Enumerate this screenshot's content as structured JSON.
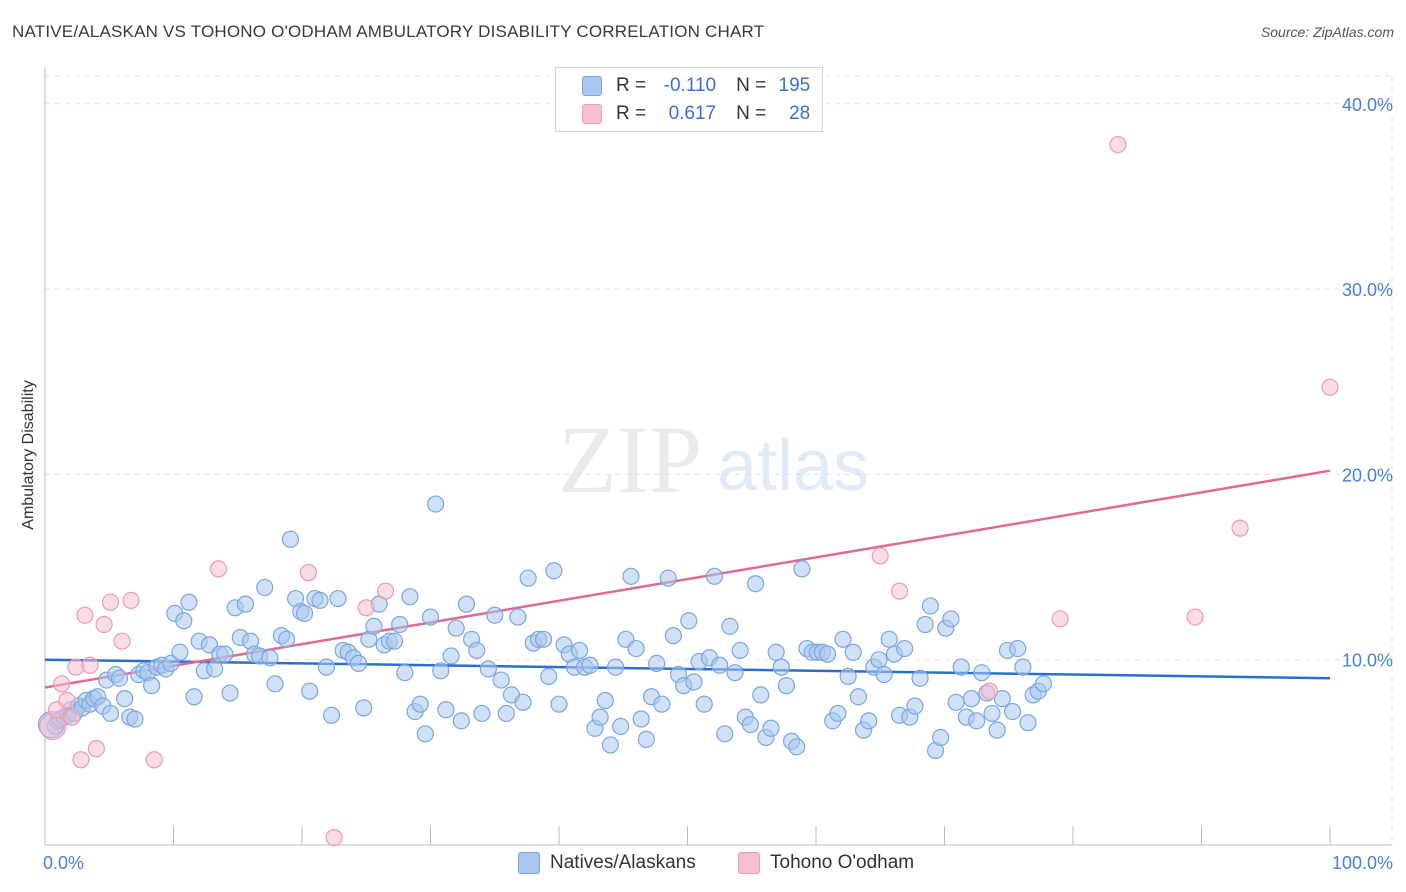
{
  "header": {
    "title": "NATIVE/ALASKAN VS TOHONO O'ODHAM AMBULATORY DISABILITY CORRELATION CHART",
    "source": "Source: ZipAtlas.com"
  },
  "watermark": {
    "zip": "ZIP",
    "atlas": "atlas"
  },
  "legend": {
    "rows": [
      {
        "r_label": "R =",
        "r_value": "-0.110",
        "n_label": "N =",
        "n_value": "195"
      },
      {
        "r_label": "R =",
        "r_value": "0.617",
        "n_label": "N =",
        "n_value": "28"
      }
    ]
  },
  "bottom_legend": {
    "series1": "Natives/Alaskans",
    "series2": "Tohono O'odham"
  },
  "colors": {
    "blue_fill": "#aac8ef",
    "blue_stroke": "#7aa6e0",
    "blue_line": "#2a6fd0",
    "pink_fill": "#f5c0d0",
    "pink_stroke": "#ee9ab4",
    "pink_line": "#e06a93",
    "tick_label": "#4a7fd6",
    "grid": "#e3e3e3"
  },
  "chart_data": {
    "type": "scatter",
    "title": "NATIVE/ALASKAN VS TOHONO O'ODHAM AMBULATORY DISABILITY CORRELATION CHART",
    "xlabel": "",
    "ylabel": "Ambulatory Disability",
    "xlim": [
      0,
      100
    ],
    "ylim": [
      0,
      41.5
    ],
    "x_tick_labels": [
      "0.0%",
      "100.0%"
    ],
    "y_ticks": [
      10,
      20,
      30,
      40
    ],
    "y_tick_labels": [
      "10.0%",
      "20.0%",
      "30.0%",
      "40.0%"
    ],
    "grid": true,
    "legend_position": "top-center",
    "series": [
      {
        "name": "Natives/Alaskans",
        "r": -0.11,
        "n": 195,
        "trend": {
          "x": [
            0,
            100
          ],
          "y": [
            10.0,
            9.0
          ]
        },
        "points": [
          [
            0.5,
            6.5
          ],
          [
            0.8,
            6.4
          ],
          [
            1.0,
            6.7
          ],
          [
            1.2,
            6.8
          ],
          [
            1.5,
            6.9
          ],
          [
            1.8,
            7.0
          ],
          [
            2.0,
            7.3
          ],
          [
            2.3,
            7.1
          ],
          [
            2.6,
            7.5
          ],
          [
            2.9,
            7.4
          ],
          [
            3.2,
            7.8
          ],
          [
            3.5,
            7.6
          ],
          [
            3.8,
            7.9
          ],
          [
            4.1,
            8.0
          ],
          [
            4.5,
            7.5
          ],
          [
            4.8,
            8.9
          ],
          [
            5.1,
            7.1
          ],
          [
            5.5,
            9.2
          ],
          [
            5.8,
            9.0
          ],
          [
            6.2,
            7.9
          ],
          [
            6.6,
            6.9
          ],
          [
            7.0,
            6.8
          ],
          [
            7.3,
            9.2
          ],
          [
            7.7,
            9.4
          ],
          [
            8.0,
            9.3
          ],
          [
            8.3,
            8.6
          ],
          [
            8.7,
            9.6
          ],
          [
            9.1,
            9.7
          ],
          [
            9.4,
            9.5
          ],
          [
            9.8,
            9.8
          ],
          [
            10.1,
            12.5
          ],
          [
            10.5,
            10.4
          ],
          [
            10.8,
            12.1
          ],
          [
            11.2,
            13.1
          ],
          [
            11.6,
            8.0
          ],
          [
            12.0,
            11.0
          ],
          [
            12.4,
            9.4
          ],
          [
            12.8,
            10.8
          ],
          [
            13.2,
            9.5
          ],
          [
            13.6,
            10.3
          ],
          [
            14.0,
            10.3
          ],
          [
            14.4,
            8.2
          ],
          [
            14.8,
            12.8
          ],
          [
            15.2,
            11.2
          ],
          [
            15.6,
            13.0
          ],
          [
            16.0,
            11.0
          ],
          [
            16.3,
            10.3
          ],
          [
            16.7,
            10.2
          ],
          [
            17.1,
            13.9
          ],
          [
            17.5,
            10.1
          ],
          [
            17.9,
            8.7
          ],
          [
            18.4,
            11.3
          ],
          [
            18.8,
            11.1
          ],
          [
            19.1,
            16.5
          ],
          [
            19.5,
            13.3
          ],
          [
            19.9,
            12.6
          ],
          [
            20.2,
            12.5
          ],
          [
            20.6,
            8.3
          ],
          [
            21.0,
            13.3
          ],
          [
            21.4,
            13.2
          ],
          [
            21.9,
            9.6
          ],
          [
            22.3,
            7.0
          ],
          [
            22.8,
            13.3
          ],
          [
            23.2,
            10.5
          ],
          [
            23.6,
            10.4
          ],
          [
            24.0,
            10.1
          ],
          [
            24.4,
            9.8
          ],
          [
            24.8,
            7.4
          ],
          [
            25.2,
            11.1
          ],
          [
            25.6,
            11.8
          ],
          [
            26.0,
            13.0
          ],
          [
            26.4,
            10.8
          ],
          [
            26.8,
            11.0
          ],
          [
            27.2,
            11.0
          ],
          [
            27.6,
            11.9
          ],
          [
            28.0,
            9.3
          ],
          [
            28.4,
            13.4
          ],
          [
            28.8,
            7.2
          ],
          [
            29.2,
            7.6
          ],
          [
            29.6,
            6.0
          ],
          [
            30.0,
            12.3
          ],
          [
            30.4,
            18.4
          ],
          [
            30.8,
            9.4
          ],
          [
            31.2,
            7.3
          ],
          [
            31.6,
            10.2
          ],
          [
            32.0,
            11.7
          ],
          [
            32.4,
            6.7
          ],
          [
            32.8,
            13.0
          ],
          [
            33.2,
            11.1
          ],
          [
            33.6,
            10.5
          ],
          [
            34.0,
            7.1
          ],
          [
            34.5,
            9.5
          ],
          [
            35.0,
            12.4
          ],
          [
            35.5,
            8.9
          ],
          [
            35.9,
            7.1
          ],
          [
            36.3,
            8.1
          ],
          [
            36.8,
            12.3
          ],
          [
            37.2,
            7.7
          ],
          [
            37.6,
            14.4
          ],
          [
            38.0,
            10.9
          ],
          [
            38.4,
            11.1
          ],
          [
            38.8,
            11.1
          ],
          [
            39.2,
            9.1
          ],
          [
            39.6,
            14.8
          ],
          [
            40.0,
            7.6
          ],
          [
            40.4,
            10.8
          ],
          [
            40.8,
            10.3
          ],
          [
            41.2,
            9.6
          ],
          [
            41.6,
            10.5
          ],
          [
            42.0,
            9.6
          ],
          [
            42.4,
            9.7
          ],
          [
            42.8,
            6.3
          ],
          [
            43.2,
            6.9
          ],
          [
            43.6,
            7.8
          ],
          [
            44.0,
            5.4
          ],
          [
            44.4,
            9.6
          ],
          [
            44.8,
            6.4
          ],
          [
            45.2,
            11.1
          ],
          [
            45.6,
            14.5
          ],
          [
            46.0,
            10.6
          ],
          [
            46.4,
            6.8
          ],
          [
            46.8,
            5.7
          ],
          [
            47.2,
            8.0
          ],
          [
            47.6,
            9.8
          ],
          [
            48.0,
            7.6
          ],
          [
            48.5,
            14.4
          ],
          [
            48.9,
            11.3
          ],
          [
            49.3,
            9.2
          ],
          [
            49.7,
            8.6
          ],
          [
            50.1,
            12.1
          ],
          [
            50.5,
            8.8
          ],
          [
            50.9,
            9.9
          ],
          [
            51.3,
            7.6
          ],
          [
            51.7,
            10.1
          ],
          [
            52.1,
            14.5
          ],
          [
            52.5,
            9.7
          ],
          [
            52.9,
            6.0
          ],
          [
            53.3,
            11.8
          ],
          [
            53.7,
            9.3
          ],
          [
            54.1,
            10.5
          ],
          [
            54.5,
            6.9
          ],
          [
            54.9,
            6.5
          ],
          [
            55.3,
            14.1
          ],
          [
            55.7,
            8.1
          ],
          [
            56.1,
            5.8
          ],
          [
            56.5,
            6.3
          ],
          [
            56.9,
            10.4
          ],
          [
            57.3,
            9.6
          ],
          [
            57.7,
            8.6
          ],
          [
            58.1,
            5.6
          ],
          [
            58.5,
            5.3
          ],
          [
            58.9,
            14.9
          ],
          [
            59.3,
            10.6
          ],
          [
            59.7,
            10.4
          ],
          [
            60.1,
            10.4
          ],
          [
            60.5,
            10.4
          ],
          [
            60.9,
            10.3
          ],
          [
            61.3,
            6.7
          ],
          [
            61.7,
            7.1
          ],
          [
            62.1,
            11.1
          ],
          [
            62.5,
            9.1
          ],
          [
            62.9,
            10.4
          ],
          [
            63.3,
            8.0
          ],
          [
            63.7,
            6.2
          ],
          [
            64.1,
            6.7
          ],
          [
            64.5,
            9.6
          ],
          [
            64.9,
            10.0
          ],
          [
            65.3,
            9.2
          ],
          [
            65.7,
            11.1
          ],
          [
            66.1,
            10.3
          ],
          [
            66.5,
            7.0
          ],
          [
            66.9,
            10.6
          ],
          [
            67.3,
            6.9
          ],
          [
            67.7,
            7.5
          ],
          [
            68.1,
            9.0
          ],
          [
            68.5,
            11.9
          ],
          [
            68.9,
            12.9
          ],
          [
            69.3,
            5.1
          ],
          [
            69.7,
            5.8
          ],
          [
            70.1,
            11.7
          ],
          [
            70.5,
            12.2
          ],
          [
            70.9,
            7.7
          ],
          [
            71.3,
            9.6
          ],
          [
            71.7,
            6.9
          ],
          [
            72.1,
            7.9
          ],
          [
            72.5,
            6.7
          ],
          [
            72.9,
            9.3
          ],
          [
            73.3,
            8.2
          ],
          [
            73.7,
            7.1
          ],
          [
            74.1,
            6.2
          ],
          [
            74.5,
            7.9
          ],
          [
            74.9,
            10.5
          ],
          [
            75.3,
            7.2
          ],
          [
            75.7,
            10.6
          ],
          [
            76.1,
            9.6
          ],
          [
            76.5,
            6.6
          ],
          [
            76.9,
            8.1
          ],
          [
            77.3,
            8.3
          ],
          [
            77.7,
            8.7
          ]
        ]
      },
      {
        "name": "Tohono O'odham",
        "r": 0.617,
        "n": 28,
        "trend": {
          "x": [
            0,
            100
          ],
          "y": [
            8.5,
            20.2
          ]
        },
        "points": [
          [
            0.6,
            6.4
          ],
          [
            0.9,
            7.3
          ],
          [
            1.3,
            8.7
          ],
          [
            1.7,
            7.8
          ],
          [
            2.1,
            6.9
          ],
          [
            2.4,
            9.6
          ],
          [
            2.8,
            4.6
          ],
          [
            3.1,
            12.4
          ],
          [
            3.5,
            9.7
          ],
          [
            4.0,
            5.2
          ],
          [
            4.6,
            11.9
          ],
          [
            5.1,
            13.1
          ],
          [
            6.0,
            11.0
          ],
          [
            6.7,
            13.2
          ],
          [
            8.5,
            4.6
          ],
          [
            13.5,
            14.9
          ],
          [
            20.5,
            14.7
          ],
          [
            22.5,
            0.4
          ],
          [
            25.0,
            12.8
          ],
          [
            26.5,
            13.7
          ],
          [
            65.0,
            15.6
          ],
          [
            66.5,
            13.7
          ],
          [
            73.5,
            8.3
          ],
          [
            79.0,
            12.2
          ],
          [
            83.5,
            37.8
          ],
          [
            89.5,
            12.3
          ],
          [
            93.0,
            17.1
          ],
          [
            100.0,
            24.7
          ]
        ]
      }
    ]
  }
}
